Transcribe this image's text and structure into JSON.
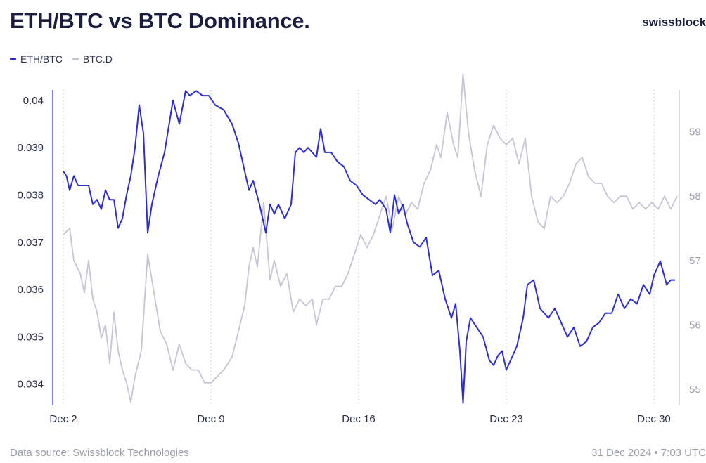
{
  "header": {
    "title": "ETH/BTC vs BTC Dominance.",
    "brand": "swissblock"
  },
  "footer": {
    "source": "Data source: Swissblock Technologies",
    "timestamp": "31 Dec 2024 • 7:03 UTC"
  },
  "colors": {
    "eth": "#2c2ed0",
    "btcd": "#c4c6d4",
    "axis_text": "#2a2c48",
    "axis_text_right": "#9ea0b0"
  },
  "chart_data": {
    "type": "line",
    "x_ticks": [
      "Dec 2",
      "Dec 9",
      "Dec 16",
      "Dec 23",
      "Dec 30"
    ],
    "x_tick_index": [
      0,
      7,
      14,
      21,
      28
    ],
    "x_range": [
      -0.5,
      29.2
    ],
    "y_left": {
      "ticks": [
        "0.04",
        "0.039",
        "0.038",
        "0.037",
        "0.036",
        "0.035",
        "0.034"
      ],
      "range": [
        0.03355,
        0.04022
      ]
    },
    "y_right": {
      "ticks": [
        "59",
        "58",
        "57",
        "56",
        "55"
      ],
      "range": [
        54.75,
        59.65
      ]
    },
    "grid": "vertical-dotted",
    "legend_position": "top-left",
    "series": [
      {
        "name": "ETH/BTC",
        "axis": "left",
        "points": [
          [
            0,
            0.0385
          ],
          [
            0.15,
            0.0384
          ],
          [
            0.3,
            0.0381
          ],
          [
            0.5,
            0.0384
          ],
          [
            0.7,
            0.0382
          ],
          [
            1.0,
            0.0382
          ],
          [
            1.2,
            0.0382
          ],
          [
            1.4,
            0.0378
          ],
          [
            1.6,
            0.0379
          ],
          [
            1.8,
            0.0377
          ],
          [
            2.0,
            0.0381
          ],
          [
            2.2,
            0.0379
          ],
          [
            2.4,
            0.0379
          ],
          [
            2.6,
            0.0373
          ],
          [
            2.8,
            0.0375
          ],
          [
            3.0,
            0.038
          ],
          [
            3.2,
            0.0384
          ],
          [
            3.4,
            0.039
          ],
          [
            3.6,
            0.0399
          ],
          [
            3.8,
            0.0393
          ],
          [
            4.0,
            0.0372
          ],
          [
            4.2,
            0.0378
          ],
          [
            4.5,
            0.0384
          ],
          [
            4.8,
            0.0389
          ],
          [
            5.2,
            0.04
          ],
          [
            5.5,
            0.0395
          ],
          [
            5.8,
            0.0402
          ],
          [
            6.0,
            0.0401
          ],
          [
            6.3,
            0.0402
          ],
          [
            6.6,
            0.0401
          ],
          [
            6.9,
            0.0401
          ],
          [
            7.2,
            0.0399
          ],
          [
            7.6,
            0.0398
          ],
          [
            8.0,
            0.0395
          ],
          [
            8.3,
            0.0391
          ],
          [
            8.6,
            0.0385
          ],
          [
            8.8,
            0.0381
          ],
          [
            9.0,
            0.0383
          ],
          [
            9.3,
            0.0378
          ],
          [
            9.6,
            0.0372
          ],
          [
            9.8,
            0.0378
          ],
          [
            10.0,
            0.0376
          ],
          [
            10.2,
            0.0378
          ],
          [
            10.5,
            0.0375
          ],
          [
            10.8,
            0.0378
          ],
          [
            11.0,
            0.0389
          ],
          [
            11.2,
            0.039
          ],
          [
            11.4,
            0.0389
          ],
          [
            11.6,
            0.039
          ],
          [
            11.8,
            0.0389
          ],
          [
            12.0,
            0.0388
          ],
          [
            12.2,
            0.0394
          ],
          [
            12.4,
            0.0389
          ],
          [
            12.7,
            0.0389
          ],
          [
            13.0,
            0.0387
          ],
          [
            13.3,
            0.0386
          ],
          [
            13.6,
            0.0383
          ],
          [
            13.9,
            0.0382
          ],
          [
            14.2,
            0.038
          ],
          [
            14.5,
            0.0379
          ],
          [
            14.8,
            0.0378
          ],
          [
            15.0,
            0.0379
          ],
          [
            15.3,
            0.0377
          ],
          [
            15.5,
            0.0372
          ],
          [
            15.7,
            0.038
          ],
          [
            15.9,
            0.0376
          ],
          [
            16.1,
            0.0378
          ],
          [
            16.3,
            0.0374
          ],
          [
            16.6,
            0.037
          ],
          [
            16.9,
            0.0369
          ],
          [
            17.2,
            0.0371
          ],
          [
            17.5,
            0.0363
          ],
          [
            17.8,
            0.0364
          ],
          [
            18.1,
            0.0358
          ],
          [
            18.4,
            0.0354
          ],
          [
            18.6,
            0.0357
          ],
          [
            18.8,
            0.0347
          ],
          [
            18.95,
            0.0336
          ],
          [
            19.1,
            0.0349
          ],
          [
            19.3,
            0.0354
          ],
          [
            19.6,
            0.0352
          ],
          [
            19.9,
            0.035
          ],
          [
            20.2,
            0.0345
          ],
          [
            20.4,
            0.0344
          ],
          [
            20.6,
            0.0346
          ],
          [
            20.8,
            0.0347
          ],
          [
            21.0,
            0.0343
          ],
          [
            21.2,
            0.0345
          ],
          [
            21.5,
            0.0348
          ],
          [
            21.8,
            0.0354
          ],
          [
            22.0,
            0.0361
          ],
          [
            22.3,
            0.0362
          ],
          [
            22.6,
            0.0356
          ],
          [
            23.0,
            0.0354
          ],
          [
            23.3,
            0.0356
          ],
          [
            23.6,
            0.0353
          ],
          [
            23.9,
            0.035
          ],
          [
            24.2,
            0.0352
          ],
          [
            24.5,
            0.0348
          ],
          [
            24.8,
            0.0349
          ],
          [
            25.1,
            0.0352
          ],
          [
            25.4,
            0.0353
          ],
          [
            25.7,
            0.0355
          ],
          [
            26.0,
            0.0355
          ],
          [
            26.3,
            0.0359
          ],
          [
            26.6,
            0.0356
          ],
          [
            26.9,
            0.0358
          ],
          [
            27.2,
            0.0357
          ],
          [
            27.5,
            0.0361
          ],
          [
            27.8,
            0.0359
          ],
          [
            28.0,
            0.0363
          ],
          [
            28.3,
            0.0366
          ],
          [
            28.6,
            0.0361
          ],
          [
            28.8,
            0.0362
          ],
          [
            29.0,
            0.0362
          ]
        ]
      },
      {
        "name": "BTC.D",
        "axis": "right",
        "points": [
          [
            0,
            57.4
          ],
          [
            0.3,
            57.5
          ],
          [
            0.5,
            57.0
          ],
          [
            0.8,
            56.8
          ],
          [
            1.0,
            56.5
          ],
          [
            1.2,
            57.0
          ],
          [
            1.4,
            56.4
          ],
          [
            1.6,
            56.2
          ],
          [
            1.8,
            55.8
          ],
          [
            2.0,
            56.0
          ],
          [
            2.2,
            55.4
          ],
          [
            2.4,
            56.2
          ],
          [
            2.6,
            55.6
          ],
          [
            2.8,
            55.3
          ],
          [
            3.0,
            55.1
          ],
          [
            3.2,
            54.8
          ],
          [
            3.4,
            55.2
          ],
          [
            3.7,
            55.6
          ],
          [
            4.0,
            57.1
          ],
          [
            4.3,
            56.5
          ],
          [
            4.6,
            55.9
          ],
          [
            4.9,
            55.7
          ],
          [
            5.2,
            55.3
          ],
          [
            5.5,
            55.7
          ],
          [
            5.8,
            55.4
          ],
          [
            6.1,
            55.3
          ],
          [
            6.4,
            55.3
          ],
          [
            6.7,
            55.1
          ],
          [
            7.0,
            55.1
          ],
          [
            7.3,
            55.2
          ],
          [
            7.6,
            55.3
          ],
          [
            8.0,
            55.5
          ],
          [
            8.3,
            55.9
          ],
          [
            8.6,
            56.3
          ],
          [
            8.8,
            56.9
          ],
          [
            9.0,
            57.2
          ],
          [
            9.2,
            56.9
          ],
          [
            9.5,
            57.9
          ],
          [
            9.8,
            56.7
          ],
          [
            10.0,
            57.0
          ],
          [
            10.3,
            56.6
          ],
          [
            10.6,
            56.8
          ],
          [
            10.9,
            56.2
          ],
          [
            11.2,
            56.4
          ],
          [
            11.5,
            56.3
          ],
          [
            11.8,
            56.4
          ],
          [
            12.0,
            56.0
          ],
          [
            12.3,
            56.4
          ],
          [
            12.6,
            56.4
          ],
          [
            12.9,
            56.6
          ],
          [
            13.2,
            56.6
          ],
          [
            13.5,
            56.8
          ],
          [
            13.8,
            57.1
          ],
          [
            14.1,
            57.4
          ],
          [
            14.4,
            57.2
          ],
          [
            14.7,
            57.4
          ],
          [
            15.0,
            57.7
          ],
          [
            15.3,
            58.0
          ],
          [
            15.6,
            57.5
          ],
          [
            15.9,
            58.0
          ],
          [
            16.2,
            57.7
          ],
          [
            16.5,
            57.9
          ],
          [
            16.8,
            57.8
          ],
          [
            17.1,
            58.2
          ],
          [
            17.4,
            58.4
          ],
          [
            17.7,
            58.8
          ],
          [
            17.9,
            58.6
          ],
          [
            18.2,
            59.3
          ],
          [
            18.5,
            58.8
          ],
          [
            18.7,
            58.6
          ],
          [
            18.95,
            59.9
          ],
          [
            19.2,
            59.0
          ],
          [
            19.5,
            58.4
          ],
          [
            19.8,
            58.0
          ],
          [
            20.1,
            58.8
          ],
          [
            20.4,
            59.1
          ],
          [
            20.7,
            58.9
          ],
          [
            21.0,
            58.8
          ],
          [
            21.3,
            58.9
          ],
          [
            21.6,
            58.5
          ],
          [
            21.9,
            58.9
          ],
          [
            22.2,
            58.0
          ],
          [
            22.5,
            57.6
          ],
          [
            22.8,
            57.5
          ],
          [
            23.1,
            58.0
          ],
          [
            23.4,
            57.9
          ],
          [
            23.7,
            58.0
          ],
          [
            24.0,
            58.2
          ],
          [
            24.3,
            58.5
          ],
          [
            24.6,
            58.6
          ],
          [
            24.9,
            58.3
          ],
          [
            25.2,
            58.2
          ],
          [
            25.5,
            58.2
          ],
          [
            25.8,
            58.0
          ],
          [
            26.1,
            57.9
          ],
          [
            26.4,
            58.0
          ],
          [
            26.7,
            58.0
          ],
          [
            27.0,
            57.8
          ],
          [
            27.3,
            57.9
          ],
          [
            27.6,
            57.8
          ],
          [
            27.9,
            57.9
          ],
          [
            28.2,
            57.8
          ],
          [
            28.5,
            58.0
          ],
          [
            28.8,
            57.8
          ],
          [
            29.1,
            58.0
          ]
        ]
      }
    ]
  }
}
